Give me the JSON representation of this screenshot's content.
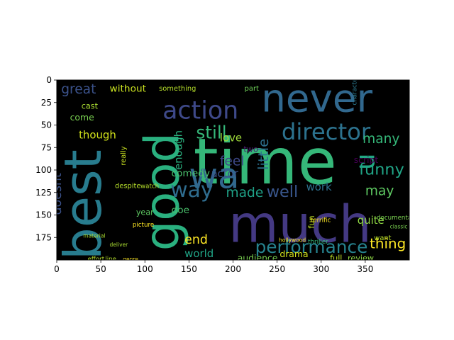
{
  "chart_data": {
    "type": "image",
    "subtype": "wordcloud",
    "title": "",
    "xlabel": "",
    "ylabel": "",
    "xlim": [
      0,
      400
    ],
    "ylim": [
      200,
      0
    ],
    "xticks": [
      0,
      50,
      100,
      150,
      200,
      250,
      300,
      350
    ],
    "yticks": [
      0,
      25,
      50,
      75,
      100,
      125,
      150,
      175
    ],
    "xtick_labels": [
      "0",
      "50",
      "100",
      "150",
      "200",
      "250",
      "300",
      "350"
    ],
    "ytick_labels": [
      "0",
      "25",
      "50",
      "75",
      "100",
      "125",
      "150",
      "175"
    ],
    "background": "#000000",
    "words": [
      {
        "text": "time",
        "x": 155,
        "y": 115,
        "size": 72,
        "color": "#35b779",
        "rotate": 0
      },
      {
        "text": "much",
        "x": 195,
        "y": 180,
        "size": 58,
        "color": "#443983",
        "rotate": 0
      },
      {
        "text": "never",
        "x": 232,
        "y": 35,
        "size": 44,
        "color": "#31688e",
        "rotate": 0
      },
      {
        "text": "best",
        "x": 50,
        "y": 200,
        "size": 58,
        "color": "#287c8e",
        "rotate": -90
      },
      {
        "text": "good",
        "x": 138,
        "y": 190,
        "size": 54,
        "color": "#2ab07f",
        "rotate": -90
      },
      {
        "text": "action",
        "x": 120,
        "y": 43,
        "size": 28,
        "color": "#3e4989",
        "rotate": 0
      },
      {
        "text": "director",
        "x": 255,
        "y": 66,
        "size": 26,
        "color": "#2c728e",
        "rotate": 0
      },
      {
        "text": "wa",
        "x": 150,
        "y": 120,
        "size": 40,
        "color": "#31688e",
        "rotate": 0
      },
      {
        "text": "way",
        "x": 129,
        "y": 130,
        "size": 24,
        "color": "#2f6c8e",
        "rotate": 0
      },
      {
        "text": "u",
        "x": 360,
        "y": 100,
        "size": 30,
        "color": "#22a884",
        "rotate": -90
      },
      {
        "text": "still",
        "x": 158,
        "y": 65,
        "size": 20,
        "color": "#35b779",
        "rotate": 0
      },
      {
        "text": "great",
        "x": 5,
        "y": 15,
        "size": 15,
        "color": "#3b528b",
        "rotate": 0
      },
      {
        "text": "without",
        "x": 60,
        "y": 13,
        "size": 11,
        "color": "#c8e020",
        "rotate": 0
      },
      {
        "text": "something",
        "x": 116,
        "y": 12,
        "size": 8,
        "color": "#b5de2b",
        "rotate": 0
      },
      {
        "text": "part",
        "x": 213,
        "y": 12,
        "size": 8,
        "color": "#6ece58",
        "rotate": 0
      },
      {
        "text": "little",
        "x": 240,
        "y": 100,
        "size": 16,
        "color": "#2d708e",
        "rotate": -90
      },
      {
        "text": "enough",
        "x": 142,
        "y": 100,
        "size": 12,
        "color": "#2ab07f",
        "rotate": -90
      },
      {
        "text": "feel",
        "x": 185,
        "y": 95,
        "size": 15,
        "color": "#3e4989",
        "rotate": 0
      },
      {
        "text": "actor",
        "x": 175,
        "y": 108,
        "size": 12,
        "color": "#3b528b",
        "rotate": 0
      },
      {
        "text": "made",
        "x": 192,
        "y": 130,
        "size": 15,
        "color": "#1fa187",
        "rotate": 0
      },
      {
        "text": "well",
        "x": 238,
        "y": 130,
        "size": 18,
        "color": "#39568c",
        "rotate": 0
      },
      {
        "text": "work",
        "x": 283,
        "y": 123,
        "size": 12,
        "color": "#2d708e",
        "rotate": 0
      },
      {
        "text": "many",
        "x": 347,
        "y": 70,
        "size": 15,
        "color": "#35b779",
        "rotate": 0
      },
      {
        "text": "may",
        "x": 350,
        "y": 128,
        "size": 15,
        "color": "#5ec962",
        "rotate": 0
      },
      {
        "text": "funny",
        "x": 343,
        "y": 105,
        "size": 18,
        "color": "#20a486",
        "rotate": 0
      },
      {
        "text": "quite",
        "x": 341,
        "y": 160,
        "size": 12,
        "color": "#8fd744",
        "rotate": 0
      },
      {
        "text": "script",
        "x": 337,
        "y": 92,
        "size": 10,
        "color": "#440154",
        "rotate": 0
      },
      {
        "text": "thing",
        "x": 355,
        "y": 187,
        "size": 16,
        "color": "#fde725",
        "rotate": 0
      },
      {
        "text": "though",
        "x": 25,
        "y": 65,
        "size": 12,
        "color": "#d2e21b",
        "rotate": 0
      },
      {
        "text": "come",
        "x": 15,
        "y": 45,
        "size": 10,
        "color": "#7ad151",
        "rotate": 0
      },
      {
        "text": "cast",
        "x": 28,
        "y": 32,
        "size": 9,
        "color": "#aadc32",
        "rotate": 0
      },
      {
        "text": "love",
        "x": 185,
        "y": 68,
        "size": 12,
        "color": "#9fda3a",
        "rotate": 0
      },
      {
        "text": "comedy",
        "x": 130,
        "y": 107,
        "size": 11,
        "color": "#4ac16d",
        "rotate": 0
      },
      {
        "text": "doe",
        "x": 130,
        "y": 148,
        "size": 11,
        "color": "#4ac16d",
        "rotate": 0
      },
      {
        "text": "end",
        "x": 145,
        "y": 182,
        "size": 14,
        "color": "#fde725",
        "rotate": 0
      },
      {
        "text": "world",
        "x": 145,
        "y": 197,
        "size": 12,
        "color": "#20a486",
        "rotate": 0
      },
      {
        "text": "performance",
        "x": 225,
        "y": 192,
        "size": 20,
        "color": "#26828e",
        "rotate": 0
      },
      {
        "text": "audience",
        "x": 205,
        "y": 201,
        "size": 10,
        "color": "#7ad151",
        "rotate": 0
      },
      {
        "text": "drama",
        "x": 253,
        "y": 197,
        "size": 10,
        "color": "#d2e21b",
        "rotate": 0
      },
      {
        "text": "full",
        "x": 310,
        "y": 201,
        "size": 9,
        "color": "#bddf26",
        "rotate": 0
      },
      {
        "text": "review",
        "x": 330,
        "y": 201,
        "size": 9,
        "color": "#8fd744",
        "rotate": 0
      },
      {
        "text": "fun",
        "x": 292,
        "y": 165,
        "size": 9,
        "color": "#bddf26",
        "rotate": -90
      },
      {
        "text": "want",
        "x": 360,
        "y": 178,
        "size": 8,
        "color": "#b5de2b",
        "rotate": 0
      },
      {
        "text": "year",
        "x": 90,
        "y": 150,
        "size": 9,
        "color": "#5ec962",
        "rotate": 0
      },
      {
        "text": "doesnt",
        "x": 5,
        "y": 150,
        "size": 14,
        "color": "#3b528b",
        "rotate": -90
      },
      {
        "text": "really",
        "x": 78,
        "y": 95,
        "size": 8,
        "color": "#c8e020",
        "rotate": -90
      },
      {
        "text": "two",
        "x": 212,
        "y": 80,
        "size": 9,
        "color": "#481a6c",
        "rotate": 0
      },
      {
        "text": "despite",
        "x": 66,
        "y": 120,
        "size": 8,
        "color": "#b5de2b",
        "rotate": 0
      },
      {
        "text": "watch",
        "x": 95,
        "y": 120,
        "size": 7,
        "color": "#b5de2b",
        "rotate": 0
      },
      {
        "text": "picture",
        "x": 86,
        "y": 163,
        "size": 7,
        "color": "#fde725",
        "rotate": 0
      },
      {
        "text": "effort",
        "x": 35,
        "y": 201,
        "size": 7,
        "color": "#b5de2b",
        "rotate": 0
      },
      {
        "text": "line",
        "x": 55,
        "y": 201,
        "size": 7,
        "color": "#b5de2b",
        "rotate": 0
      },
      {
        "text": "genre",
        "x": 75,
        "y": 201,
        "size": 6,
        "color": "#fde725",
        "rotate": 0
      },
      {
        "text": "character",
        "x": 340,
        "y": 28,
        "size": 7,
        "color": "#2a788e",
        "rotate": -90
      },
      {
        "text": "documentary",
        "x": 363,
        "y": 155,
        "size": 7,
        "color": "#7ad151",
        "rotate": 0
      },
      {
        "text": "classic",
        "x": 378,
        "y": 165,
        "size": 6,
        "color": "#7ad151",
        "rotate": 0
      },
      {
        "text": "thriller",
        "x": 285,
        "y": 182,
        "size": 7,
        "color": "#35b779",
        "rotate": 0
      },
      {
        "text": "hollywood",
        "x": 252,
        "y": 180,
        "size": 6,
        "color": "#fde725",
        "rotate": 0
      },
      {
        "text": "terrific",
        "x": 288,
        "y": 158,
        "size": 7,
        "color": "#fde725",
        "rotate": 0
      },
      {
        "text": "material",
        "x": 30,
        "y": 175,
        "size": 6,
        "color": "#aadc32",
        "rotate": 0
      },
      {
        "text": "deliver",
        "x": 60,
        "y": 185,
        "size": 6,
        "color": "#aadc32",
        "rotate": 0
      }
    ]
  }
}
